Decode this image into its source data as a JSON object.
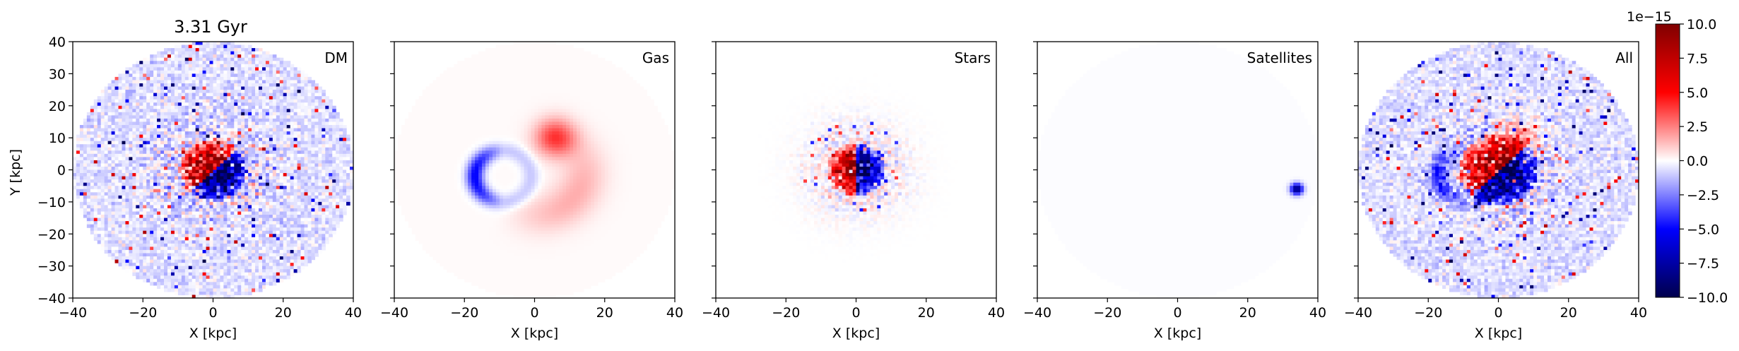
{
  "figure": {
    "time_label": "3.31 Gyr",
    "xlabel": "X [kpc]",
    "ylabel": "Y [kpc]",
    "xlim": [
      -40,
      40
    ],
    "ylim": [
      -40,
      40
    ],
    "xticks": [
      "−40",
      "−20",
      "0",
      "20",
      "40"
    ],
    "yticks": [
      "40",
      "30",
      "20",
      "10",
      "0",
      "−10",
      "−20",
      "−30",
      "−40"
    ]
  },
  "colorbar": {
    "colormap": "seismic",
    "low_color": "#00004c",
    "mid_color": "#ffffff",
    "high_color": "#800000",
    "exponent_label": "1e−15",
    "range": [
      -10.0,
      10.0
    ],
    "ticks": [
      "10.0",
      "7.5",
      "5.0",
      "2.5",
      "0.0",
      "−2.5",
      "−5.0",
      "−7.5",
      "−10.0"
    ]
  },
  "chart_data": [
    {
      "type": "heatmap",
      "panel_label": "DM",
      "title": "3.31 Gyr",
      "xlabel": "X [kpc]",
      "ylabel": "Y [kpc]",
      "xlim": [
        -40,
        40
      ],
      "ylim": [
        -40,
        40
      ],
      "field_radius_kpc": 40,
      "background_level": -0.6,
      "features": [
        {
          "kind": "central_dipole",
          "center": [
            0,
            0
          ],
          "positive_side": "upper-left",
          "amplitude": 10.0,
          "radius": 6
        },
        {
          "kind": "scattered_noise",
          "amplitude": 6.0,
          "density": "high"
        }
      ]
    },
    {
      "type": "heatmap",
      "panel_label": "Gas",
      "xlabel": "X [kpc]",
      "xlim": [
        -40,
        40
      ],
      "ylim": [
        -40,
        40
      ],
      "field_radius_kpc": 40,
      "background_level": 0.1,
      "features": [
        {
          "kind": "negative_arc",
          "center": [
            -9,
            -2
          ],
          "amplitude": -4.0
        },
        {
          "kind": "positive_blob",
          "center": [
            6,
            10
          ],
          "amplitude": 4.0
        },
        {
          "kind": "positive_spiral_arm",
          "center": [
            10,
            -8
          ],
          "amplitude": 1.5
        }
      ]
    },
    {
      "type": "heatmap",
      "panel_label": "Stars",
      "xlabel": "X [kpc]",
      "xlim": [
        -40,
        40
      ],
      "ylim": [
        -40,
        40
      ],
      "field_radius_kpc": 40,
      "background_level": 0.0,
      "features": [
        {
          "kind": "central_dipole",
          "center": [
            0,
            0
          ],
          "positive_side": "left",
          "amplitude": 10.0,
          "radius": 5
        },
        {
          "kind": "scattered_noise",
          "amplitude": 4.0,
          "density": "central"
        }
      ]
    },
    {
      "type": "heatmap",
      "panel_label": "Satellites",
      "xlabel": "X [kpc]",
      "xlim": [
        -40,
        40
      ],
      "ylim": [
        -40,
        40
      ],
      "field_radius_kpc": 40,
      "background_level": -0.05,
      "features": [
        {
          "kind": "negative_point",
          "center": [
            34,
            -6
          ],
          "amplitude": -9.0
        }
      ]
    },
    {
      "type": "heatmap",
      "panel_label": "All",
      "xlabel": "X [kpc]",
      "xlim": [
        -40,
        40
      ],
      "ylim": [
        -40,
        40
      ],
      "field_radius_kpc": 40,
      "background_level": -0.6,
      "features": [
        {
          "kind": "central_dipole",
          "center": [
            0,
            0
          ],
          "positive_side": "upper-left",
          "amplitude": 10.0,
          "radius": 7
        },
        {
          "kind": "positive_blob",
          "center": [
            6,
            10
          ],
          "amplitude": 3.0
        },
        {
          "kind": "negative_arc",
          "center": [
            -9,
            -2
          ],
          "amplitude": -3.0
        },
        {
          "kind": "scattered_noise",
          "amplitude": 6.0,
          "density": "high"
        }
      ]
    }
  ]
}
